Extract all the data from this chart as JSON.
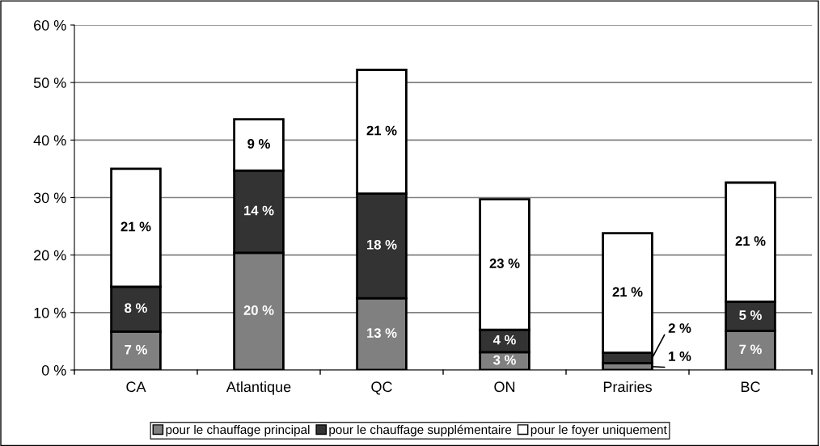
{
  "chart_data": {
    "type": "bar",
    "stacked": true,
    "categories": [
      "CA",
      "Atlantique",
      "QC",
      "ON",
      "Prairies",
      "BC"
    ],
    "series": [
      {
        "name": "pour le chauffage principal",
        "color": "#808080",
        "values": [
          6.7,
          20.4,
          12.5,
          3.1,
          1.2,
          6.8
        ],
        "value_labels": [
          "7 %",
          "20 %",
          "13 %",
          "3 %",
          "1 %",
          "7 %"
        ]
      },
      {
        "name": "pour le chauffage supplémentaire",
        "color": "#333333",
        "values": [
          7.8,
          14.3,
          18.2,
          3.9,
          1.8,
          5.1
        ],
        "value_labels": [
          "8 %",
          "14 %",
          "18 %",
          "4 %",
          "2 %",
          "5 %"
        ]
      },
      {
        "name": "pour le foyer uniquement",
        "color": "#ffffff",
        "values": [
          20.5,
          8.9,
          21.5,
          22.7,
          20.8,
          20.7
        ],
        "value_labels": [
          "21 %",
          "9 %",
          "21 %",
          "23 %",
          "21 %",
          "21 %"
        ]
      }
    ],
    "ylim": [
      0,
      60
    ],
    "yticks": [
      {
        "value": 0,
        "label": "0 %"
      },
      {
        "value": 10,
        "label": "10 %"
      },
      {
        "value": 20,
        "label": "20 %"
      },
      {
        "value": 30,
        "label": "30 %"
      },
      {
        "value": 40,
        "label": "40 %"
      },
      {
        "value": 50,
        "label": "50 %"
      },
      {
        "value": 60,
        "label": "60 %"
      }
    ],
    "grid": "y",
    "legend": "bottom"
  }
}
